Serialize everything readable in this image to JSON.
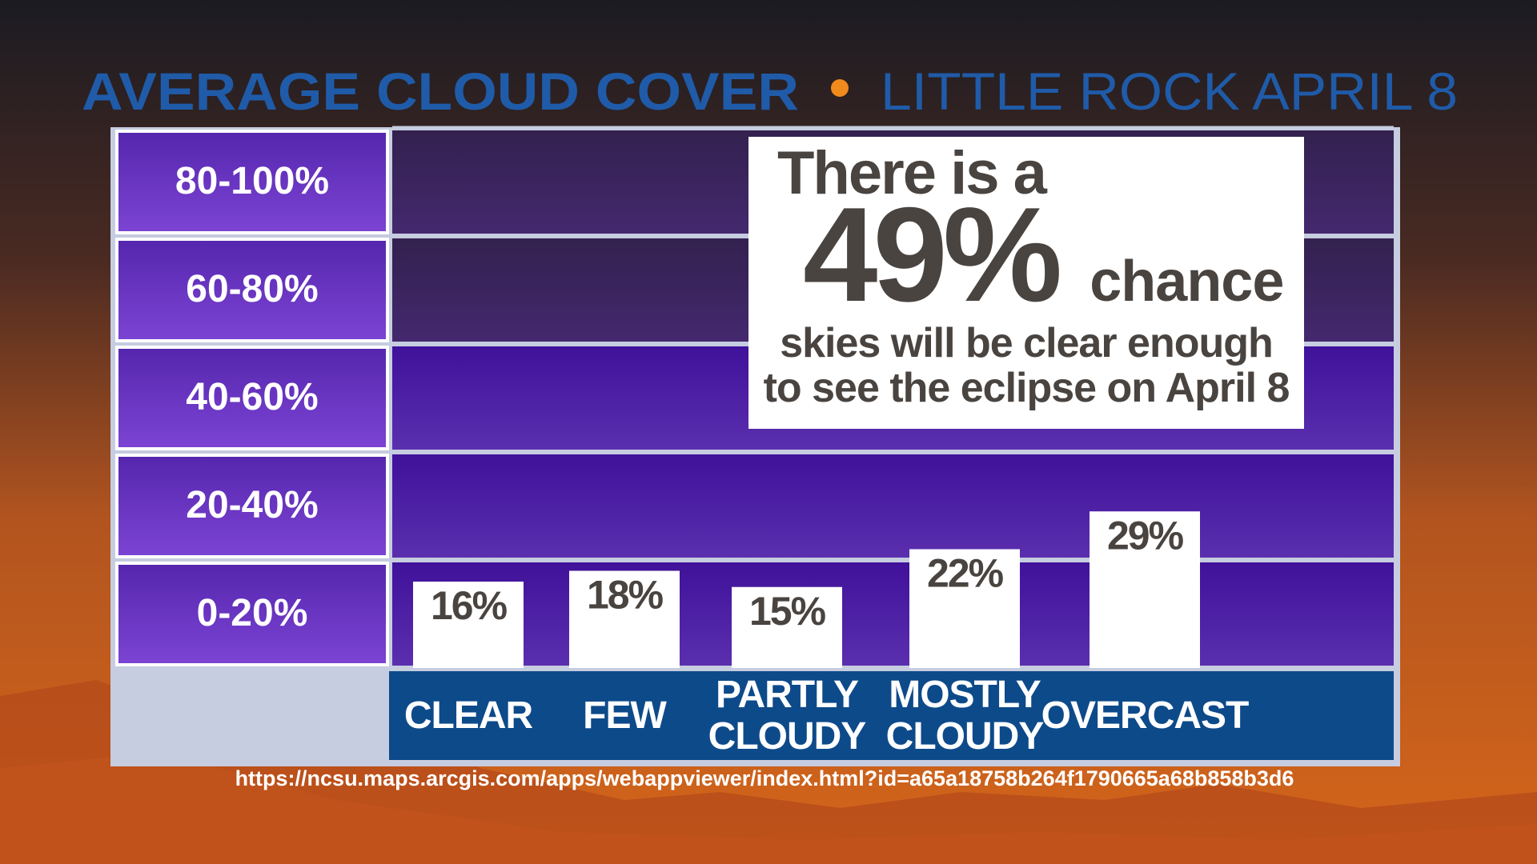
{
  "chart_data": {
    "type": "bar",
    "title": "AVERAGE CLOUD COVER",
    "subtitle": "LITTLE ROCK APRIL 8",
    "categories": [
      "CLEAR",
      "FEW",
      "PARTLY CLOUDY",
      "MOSTLY CLOUDY",
      "OVERCAST"
    ],
    "values": [
      16,
      18,
      15,
      22,
      29
    ],
    "value_labels": [
      "16%",
      "18%",
      "15%",
      "22%",
      "29%"
    ],
    "color": "#ffffff",
    "ylim": [
      0,
      100
    ],
    "y_bands": [
      {
        "lo": 0,
        "hi": 20,
        "label": "0-20%"
      },
      {
        "lo": 20,
        "hi": 40,
        "label": "20-40%"
      },
      {
        "lo": 40,
        "hi": 60,
        "label": "40-60%"
      },
      {
        "lo": 60,
        "hi": 80,
        "label": "60-80%"
      },
      {
        "lo": 80,
        "hi": 100,
        "label": "80-100%"
      }
    ],
    "annotation": {
      "intro": "There is a",
      "highlight": "49%",
      "after": "chance",
      "text": "skies will be clear enough to see the eclipse on April 8"
    },
    "source": "https://ncsu.maps.arcgis.com/apps/webappviewer/index.html?id=a65a18758b264f1790665a68b858b3d6"
  }
}
